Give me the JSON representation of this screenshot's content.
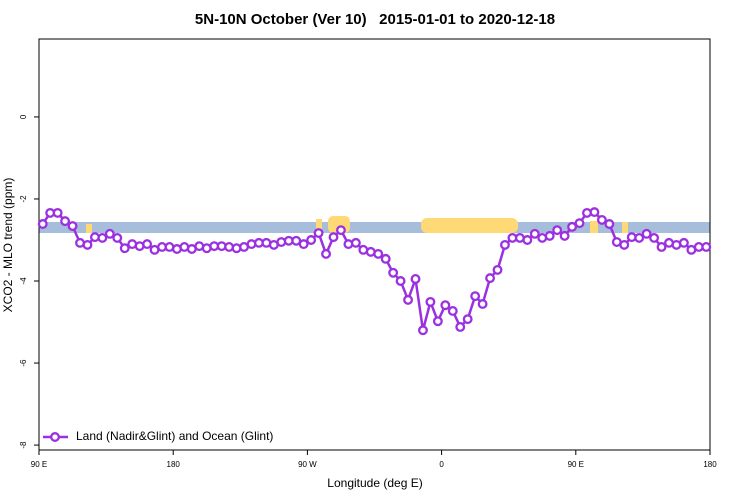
{
  "chart_data": {
    "type": "line",
    "title": "5N-10N October (Ver 10)   2015-01-01 to 2020-12-18",
    "x_label": "Longitude (deg E)",
    "y_label": "XCO2 - MLO trend (ppm)",
    "x": [
      92.5,
      97.5,
      102.5,
      107.5,
      112.5,
      117.5,
      122.5,
      127.5,
      132.5,
      137.5,
      142.5,
      147.5,
      152.5,
      157.5,
      162.5,
      167.5,
      172.5,
      177.5,
      182.5,
      187.5,
      192.5,
      197.5,
      202.5,
      207.5,
      212.5,
      217.5,
      222.5,
      227.5,
      232.5,
      237.5,
      242.5,
      247.5,
      252.5,
      257.5,
      262.5,
      267.5,
      272.5,
      277.5,
      282.5,
      287.5,
      292.5,
      297.5,
      302.5,
      307.5,
      312.5,
      317.5,
      322.5,
      327.5,
      332.5,
      337.5,
      342.5,
      347.5,
      352.5,
      357.5,
      362.5,
      367.5,
      372.5,
      377.5,
      382.5,
      387.5,
      392.5,
      397.5,
      402.5,
      407.5,
      412.5,
      417.5,
      422.5,
      427.5,
      432.5,
      437.5,
      442.5,
      447.5,
      452.5,
      457.5,
      462.5,
      467.5,
      472.5,
      477.5,
      482.5,
      487.5,
      492.5,
      497.5,
      502.5,
      507.5,
      512.5,
      517.5,
      522.5,
      527.5,
      532.5,
      537.5
    ],
    "series": [
      {
        "name": "Land (Nadir&Glint) and Ocean (Glint)",
        "color": "#9b30e0",
        "values": [
          -2.61,
          -2.34,
          -2.34,
          -2.54,
          -2.66,
          -3.07,
          -3.12,
          -2.93,
          -2.95,
          -2.85,
          -2.95,
          -3.2,
          -3.1,
          -3.15,
          -3.1,
          -3.24,
          -3.17,
          -3.17,
          -3.22,
          -3.17,
          -3.22,
          -3.15,
          -3.2,
          -3.15,
          -3.15,
          -3.17,
          -3.2,
          -3.17,
          -3.1,
          -3.07,
          -3.07,
          -3.12,
          -3.05,
          -3.02,
          -3.02,
          -3.1,
          -3.0,
          -2.83,
          -3.34,
          -2.93,
          -2.76,
          -3.1,
          -3.07,
          -3.24,
          -3.29,
          -3.34,
          -3.46,
          -3.8,
          -4.0,
          -4.46,
          -3.95,
          -5.2,
          -4.51,
          -4.98,
          -4.59,
          -4.73,
          -5.12,
          -4.93,
          -4.37,
          -4.56,
          -3.93,
          -3.73,
          -3.12,
          -2.95,
          -2.95,
          -3.0,
          -2.85,
          -2.95,
          -2.9,
          -2.76,
          -2.9,
          -2.68,
          -2.59,
          -2.34,
          -2.32,
          -2.51,
          -2.61,
          -3.05,
          -3.12,
          -2.93,
          -2.95,
          -2.85,
          -2.95,
          -3.17,
          -3.07,
          -3.12,
          -3.07,
          -3.24,
          -3.17,
          -3.17
        ]
      }
    ],
    "xlim": [
      90,
      540
    ],
    "xticks": [
      {
        "value": 90,
        "label": "90 E"
      },
      180,
      {
        "value": 270,
        "label": "90 W"
      },
      {
        "value": 360,
        "label": "0"
      },
      {
        "value": 450,
        "label": "90 E"
      },
      {
        "value": 540,
        "label": "180"
      }
    ],
    "ylim": [
      -8.12,
      1.9
    ],
    "yticks": [
      0,
      -2,
      -4,
      -6,
      -8
    ],
    "legend": "bottom-left"
  }
}
